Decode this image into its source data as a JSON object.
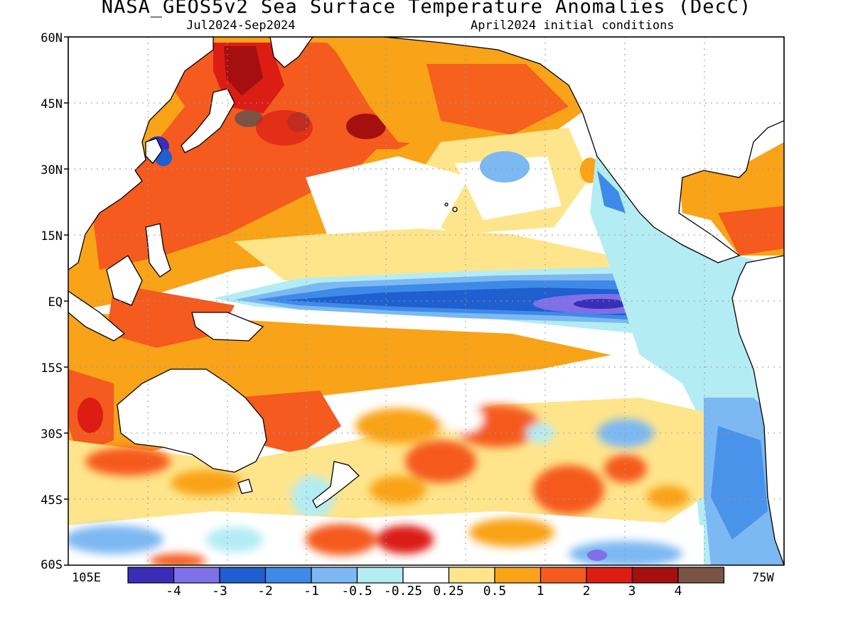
{
  "title": "NASA_GEOS5v2 Sea Surface Temperature Anomalies (DecC)",
  "subtitle_left": "Jul2024-Sep2024",
  "subtitle_right": "April2024 initial conditions",
  "map": {
    "lat_labels": [
      "60N",
      "45N",
      "30N",
      "15N",
      "EQ",
      "15S",
      "30S",
      "45S",
      "60S"
    ],
    "lon_left_label": "105E",
    "lon_right_label": "75W",
    "grid": "dotted"
  },
  "colorbar": {
    "labels": [
      "-4",
      "-3",
      "-2",
      "-1",
      "-0.5",
      "-0.25",
      "0.25",
      "0.5",
      "1",
      "2",
      "3",
      "4"
    ],
    "colors": [
      "#3a2db8",
      "#7f70e8",
      "#1f5fd0",
      "#3d8ae8",
      "#7cb8f2",
      "#b4ecf4",
      "#ffffff",
      "#fee58c",
      "#f9a318",
      "#f55a1e",
      "#dc1d14",
      "#a50f0f",
      "#7a5345"
    ]
  }
}
